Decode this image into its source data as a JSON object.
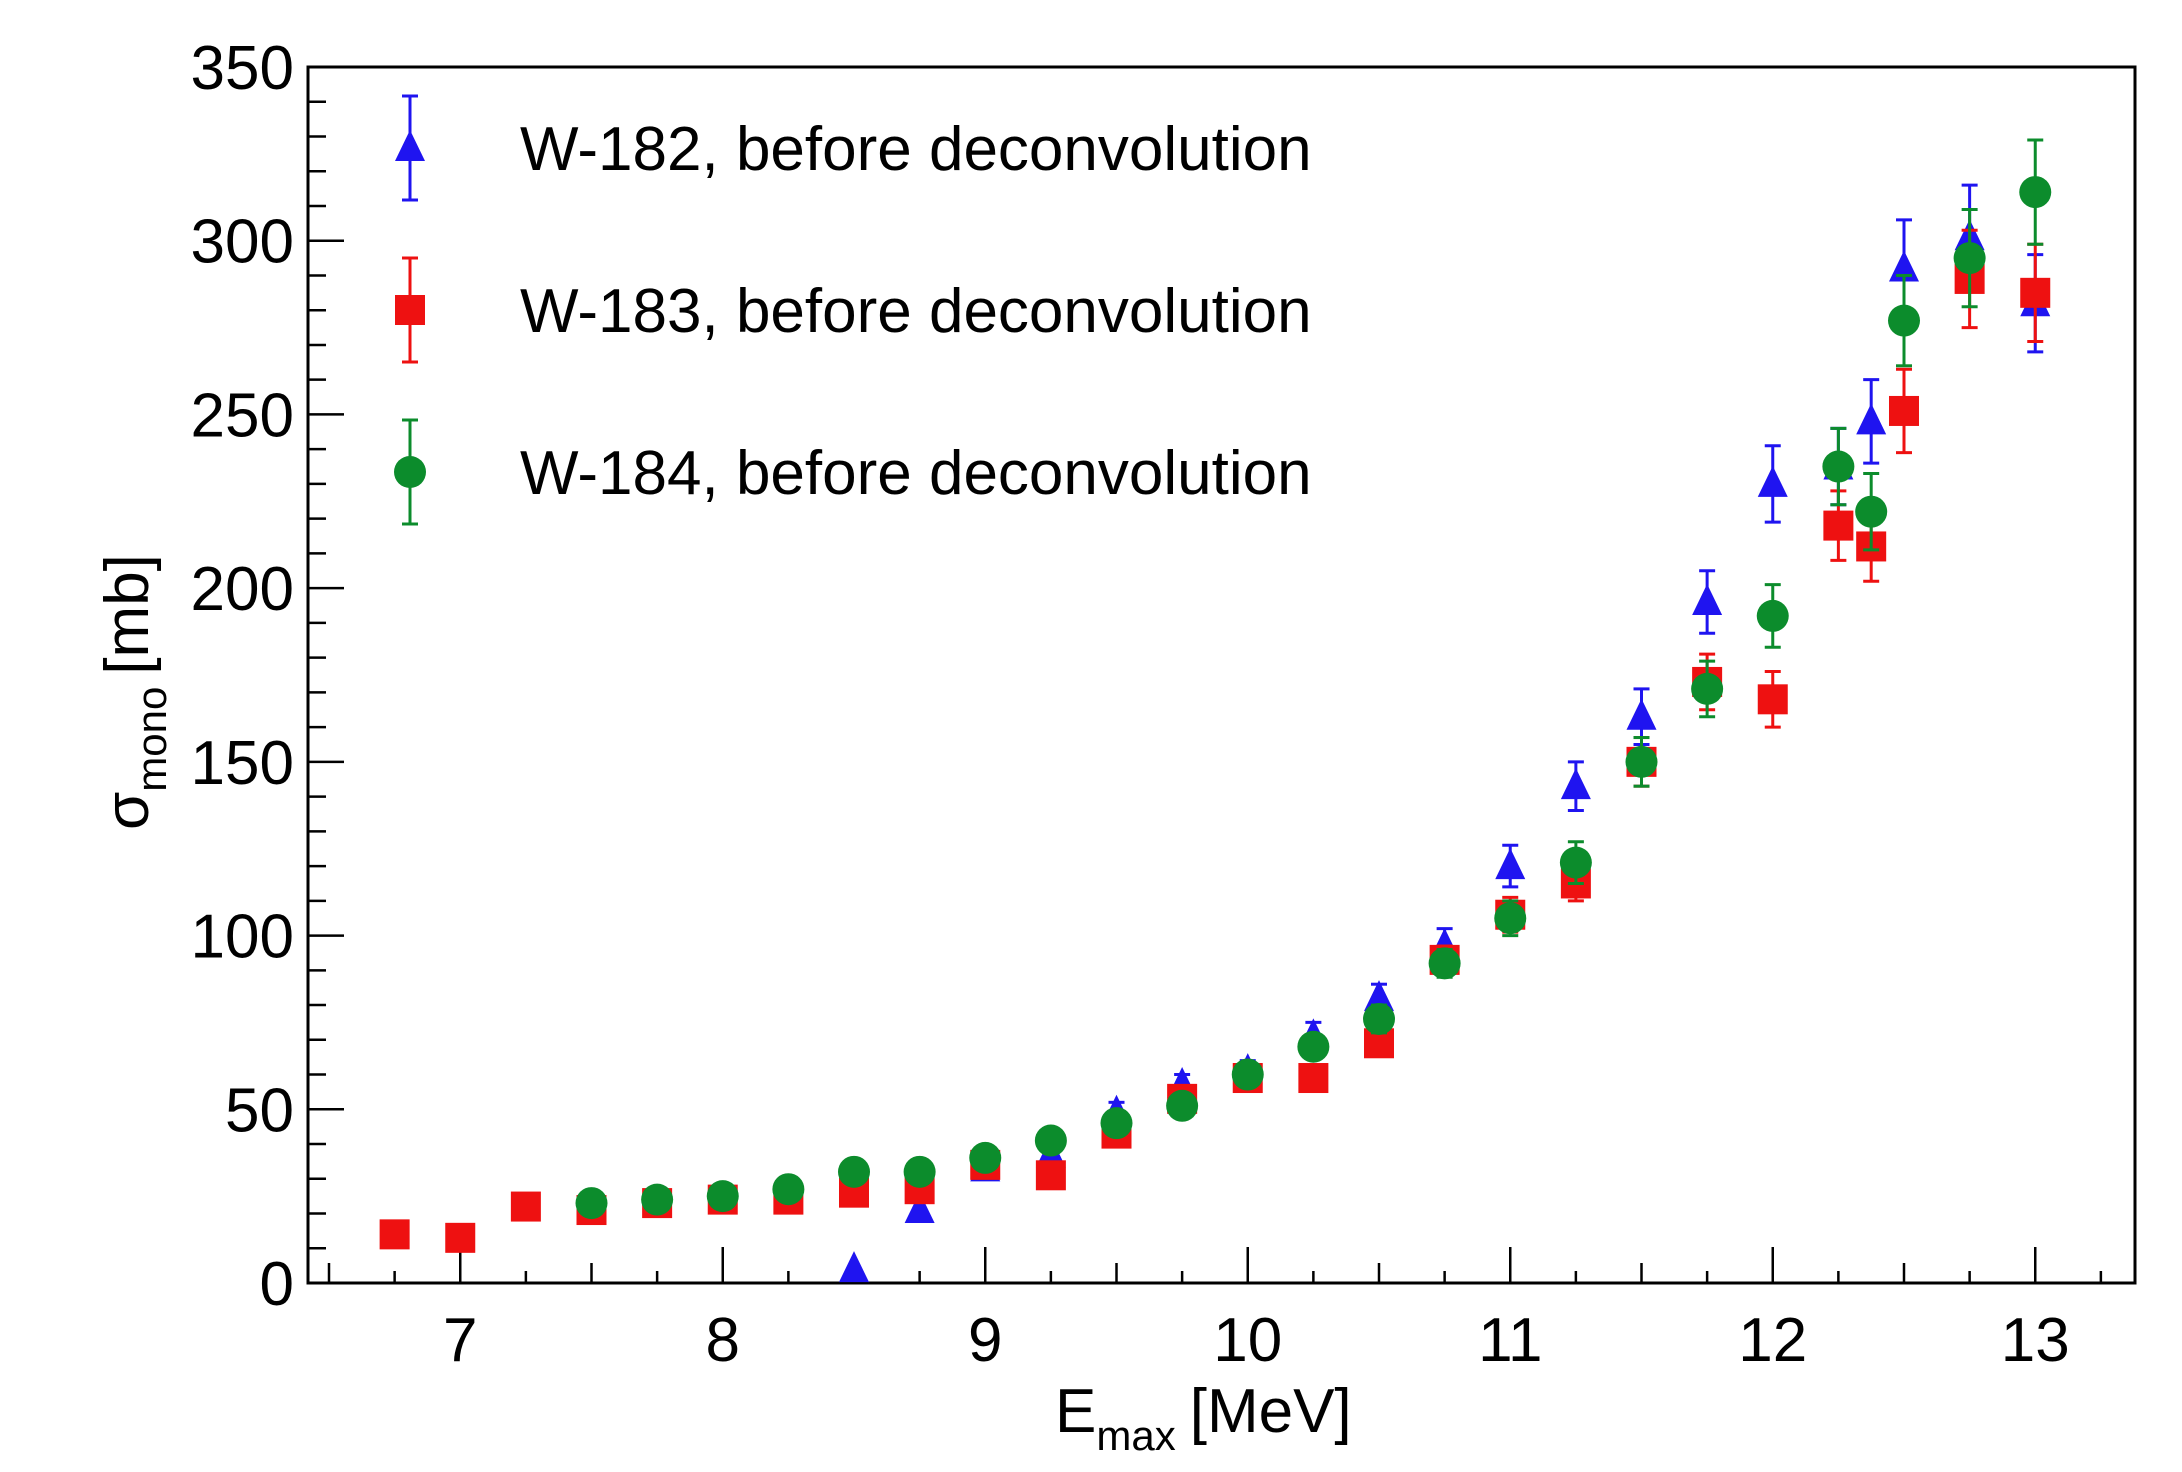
{
  "chart_data": {
    "type": "scatter",
    "title": "",
    "xlabel": {
      "main": "E",
      "sub": "max",
      "unit": "[MeV]"
    },
    "ylabel": {
      "main": "σ",
      "sub": "mono",
      "unit": "[mb]"
    },
    "xlim": [
      6.42,
      13.38
    ],
    "ylim": [
      0,
      350
    ],
    "x_ticks": [
      7,
      8,
      9,
      10,
      11,
      12,
      13
    ],
    "x_tick_labels": [
      "7",
      "8",
      "9",
      "10",
      "11",
      "12",
      "13"
    ],
    "y_ticks": [
      0,
      50,
      100,
      150,
      200,
      250,
      300,
      350
    ],
    "y_tick_labels": [
      "0",
      "50",
      "100",
      "150",
      "200",
      "250",
      "300",
      "350"
    ],
    "grid": false,
    "legend_position": "top-left",
    "series": [
      {
        "name": "W-182, before deconvolution",
        "marker": "triangle",
        "color": "#1f14f0",
        "points": [
          {
            "x": 8.5,
            "y": 4,
            "err": 0
          },
          {
            "x": 8.75,
            "y": 21,
            "err": 0
          },
          {
            "x": 9.0,
            "y": 33,
            "err": 2
          },
          {
            "x": 9.25,
            "y": 37,
            "err": 2
          },
          {
            "x": 9.5,
            "y": 49,
            "err": 3
          },
          {
            "x": 9.75,
            "y": 57,
            "err": 3
          },
          {
            "x": 10.0,
            "y": 61,
            "err": 3
          },
          {
            "x": 10.25,
            "y": 71,
            "err": 4
          },
          {
            "x": 10.5,
            "y": 82,
            "err": 4
          },
          {
            "x": 10.75,
            "y": 97,
            "err": 5
          },
          {
            "x": 11.0,
            "y": 120,
            "err": 6
          },
          {
            "x": 11.25,
            "y": 143,
            "err": 7
          },
          {
            "x": 11.5,
            "y": 163,
            "err": 8
          },
          {
            "x": 11.75,
            "y": 196,
            "err": 9
          },
          {
            "x": 12.0,
            "y": 230,
            "err": 11
          },
          {
            "x": 12.25,
            "y": 235,
            "err": 11
          },
          {
            "x": 12.375,
            "y": 248,
            "err": 12
          },
          {
            "x": 12.5,
            "y": 292,
            "err": 14
          },
          {
            "x": 12.75,
            "y": 301,
            "err": 15
          },
          {
            "x": 13.0,
            "y": 282,
            "err": 14
          }
        ]
      },
      {
        "name": "W-183, before deconvolution",
        "marker": "square",
        "color": "#ee1111",
        "points": [
          {
            "x": 6.75,
            "y": 14,
            "err": 0
          },
          {
            "x": 7.0,
            "y": 13,
            "err": 0
          },
          {
            "x": 7.25,
            "y": 22,
            "err": 0
          },
          {
            "x": 7.5,
            "y": 21,
            "err": 0
          },
          {
            "x": 7.75,
            "y": 23,
            "err": 0
          },
          {
            "x": 8.0,
            "y": 24,
            "err": 0
          },
          {
            "x": 8.25,
            "y": 24,
            "err": 0
          },
          {
            "x": 8.5,
            "y": 26,
            "err": 0
          },
          {
            "x": 8.75,
            "y": 27,
            "err": 0
          },
          {
            "x": 9.0,
            "y": 34,
            "err": 2
          },
          {
            "x": 9.25,
            "y": 31,
            "err": 2
          },
          {
            "x": 9.5,
            "y": 43,
            "err": 2
          },
          {
            "x": 9.75,
            "y": 53,
            "err": 3
          },
          {
            "x": 10.0,
            "y": 59,
            "err": 3
          },
          {
            "x": 10.25,
            "y": 59,
            "err": 3
          },
          {
            "x": 10.5,
            "y": 69,
            "err": 3
          },
          {
            "x": 10.75,
            "y": 93,
            "err": 4
          },
          {
            "x": 11.0,
            "y": 106,
            "err": 5
          },
          {
            "x": 11.25,
            "y": 115,
            "err": 5
          },
          {
            "x": 11.5,
            "y": 150,
            "err": 7
          },
          {
            "x": 11.75,
            "y": 173,
            "err": 8
          },
          {
            "x": 12.0,
            "y": 168,
            "err": 8
          },
          {
            "x": 12.25,
            "y": 218,
            "err": 10
          },
          {
            "x": 12.375,
            "y": 212,
            "err": 10
          },
          {
            "x": 12.5,
            "y": 251,
            "err": 12
          },
          {
            "x": 12.75,
            "y": 289,
            "err": 14
          },
          {
            "x": 13.0,
            "y": 285,
            "err": 14
          }
        ]
      },
      {
        "name": "W-184, before deconvolution",
        "marker": "circle",
        "color": "#0c8c2c",
        "points": [
          {
            "x": 7.5,
            "y": 23,
            "err": 0
          },
          {
            "x": 7.75,
            "y": 24,
            "err": 0
          },
          {
            "x": 8.0,
            "y": 25,
            "err": 0
          },
          {
            "x": 8.25,
            "y": 27,
            "err": 0
          },
          {
            "x": 8.5,
            "y": 32,
            "err": 0
          },
          {
            "x": 8.75,
            "y": 32,
            "err": 0
          },
          {
            "x": 9.0,
            "y": 36,
            "err": 2
          },
          {
            "x": 9.25,
            "y": 41,
            "err": 2
          },
          {
            "x": 9.5,
            "y": 46,
            "err": 2
          },
          {
            "x": 9.75,
            "y": 51,
            "err": 3
          },
          {
            "x": 10.0,
            "y": 60,
            "err": 3
          },
          {
            "x": 10.25,
            "y": 68,
            "err": 3
          },
          {
            "x": 10.5,
            "y": 76,
            "err": 4
          },
          {
            "x": 10.75,
            "y": 92,
            "err": 4
          },
          {
            "x": 11.0,
            "y": 105,
            "err": 5
          },
          {
            "x": 11.25,
            "y": 121,
            "err": 6
          },
          {
            "x": 11.5,
            "y": 150,
            "err": 7
          },
          {
            "x": 11.75,
            "y": 171,
            "err": 8
          },
          {
            "x": 12.0,
            "y": 192,
            "err": 9
          },
          {
            "x": 12.25,
            "y": 235,
            "err": 11
          },
          {
            "x": 12.375,
            "y": 222,
            "err": 11
          },
          {
            "x": 12.5,
            "y": 277,
            "err": 13
          },
          {
            "x": 12.75,
            "y": 295,
            "err": 14
          },
          {
            "x": 13.0,
            "y": 314,
            "err": 15
          }
        ]
      }
    ]
  }
}
